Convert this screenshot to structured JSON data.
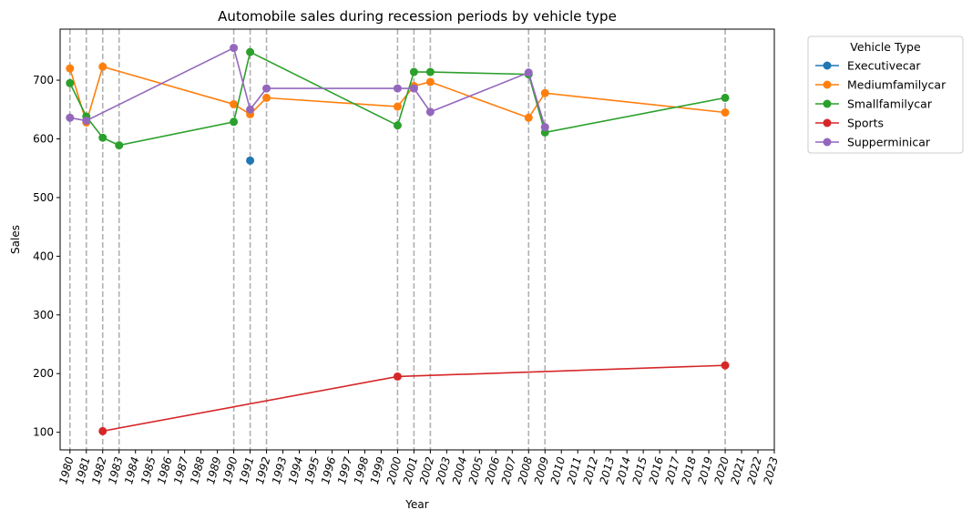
{
  "chart_data": {
    "type": "line",
    "title": "Automobile sales during recession periods by vehicle type",
    "xlabel": "Year",
    "ylabel": "Sales",
    "xlim": [
      1979.4,
      2023
    ],
    "ylim": [
      70,
      787
    ],
    "x_ticks": [
      1980,
      1981,
      1982,
      1983,
      1984,
      1985,
      1986,
      1987,
      1988,
      1989,
      1990,
      1991,
      1992,
      1993,
      1994,
      1995,
      1996,
      1997,
      1998,
      1999,
      2000,
      2001,
      2002,
      2003,
      2004,
      2005,
      2006,
      2007,
      2008,
      2009,
      2010,
      2011,
      2012,
      2013,
      2014,
      2015,
      2016,
      2017,
      2018,
      2019,
      2020,
      2021,
      2022,
      2023
    ],
    "y_ticks": [
      100,
      200,
      300,
      400,
      500,
      600,
      700
    ],
    "recession_lines": [
      1980,
      1981,
      1982,
      1983,
      1990,
      1991,
      1992,
      2000,
      2001,
      2002,
      2008,
      2009,
      2020
    ],
    "grid": false,
    "legend": {
      "title": "Vehicle Type",
      "placement": "outside-top-right"
    },
    "series": [
      {
        "name": "Executivecar",
        "color": "#1f77b4",
        "x": [
          1991
        ],
        "y": [
          563
        ]
      },
      {
        "name": "Mediumfamilycar",
        "color": "#ff7f0e",
        "x": [
          1980,
          1981,
          1982,
          1990,
          1991,
          1992,
          2000,
          2001,
          2002,
          2008,
          2009,
          2020
        ],
        "y": [
          720,
          628,
          723,
          659,
          642,
          670,
          655,
          690,
          697,
          636,
          678,
          645
        ]
      },
      {
        "name": "Smallfamilycar",
        "color": "#2ca02c",
        "x": [
          1980,
          1981,
          1982,
          1983,
          1990,
          1991,
          2000,
          2001,
          2002,
          2008,
          2009,
          2020
        ],
        "y": [
          695,
          638,
          602,
          589,
          629,
          748,
          623,
          714,
          714,
          710,
          611,
          670
        ]
      },
      {
        "name": "Sports",
        "color": "#d62728",
        "x": [
          1982,
          2000,
          2020
        ],
        "y": [
          102,
          195,
          214
        ]
      },
      {
        "name": "Supperminicar",
        "color": "#9467bd",
        "x": [
          1980,
          1981,
          1990,
          1991,
          1992,
          2000,
          2001,
          2002,
          2008,
          2009
        ],
        "y": [
          636,
          631,
          755,
          650,
          686,
          686,
          686,
          646,
          713,
          620
        ]
      }
    ]
  }
}
